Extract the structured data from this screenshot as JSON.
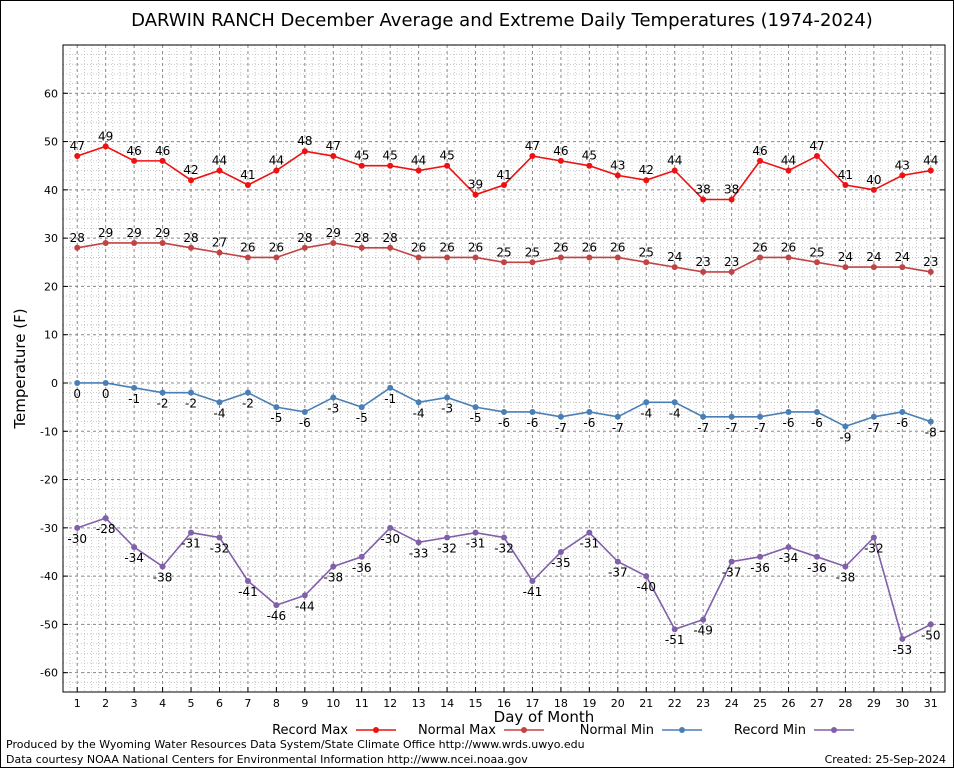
{
  "chart_data": {
    "type": "line",
    "title": "DARWIN RANCH December Average and Extreme Daily Temperatures (1974-2024)",
    "xlabel": "Day of Month",
    "ylabel": "Temperature (F)",
    "ylim": [
      -64,
      70
    ],
    "yticks": [
      -60,
      -50,
      -40,
      -30,
      -20,
      -10,
      0,
      10,
      20,
      30,
      40,
      50,
      60
    ],
    "x": [
      1,
      2,
      3,
      4,
      5,
      6,
      7,
      8,
      9,
      10,
      11,
      12,
      13,
      14,
      15,
      16,
      17,
      18,
      19,
      20,
      21,
      22,
      23,
      24,
      25,
      26,
      27,
      28,
      29,
      30,
      31
    ],
    "grid": true,
    "legend_position": "bottom",
    "series": [
      {
        "name": "Record Max",
        "color": "#ee1111",
        "values": [
          47,
          49,
          46,
          46,
          42,
          44,
          41,
          44,
          48,
          47,
          45,
          45,
          44,
          45,
          39,
          41,
          47,
          46,
          45,
          43,
          42,
          44,
          38,
          38,
          46,
          44,
          47,
          41,
          40,
          43,
          44
        ]
      },
      {
        "name": "Normal Max",
        "color": "#c04444",
        "values": [
          28,
          29,
          29,
          29,
          28,
          27,
          26,
          26,
          28,
          29,
          28,
          28,
          26,
          26,
          26,
          25,
          25,
          26,
          26,
          26,
          25,
          24,
          23,
          23,
          26,
          26,
          25,
          24,
          24,
          24,
          23
        ]
      },
      {
        "name": "Normal Min",
        "color": "#4a7fb5",
        "values": [
          0,
          0,
          -1,
          -2,
          -2,
          -4,
          -2,
          -5,
          -6,
          -3,
          -5,
          -1,
          -4,
          -3,
          -5,
          -6,
          -6,
          -7,
          -6,
          -7,
          -4,
          -4,
          -7,
          -7,
          -7,
          -6,
          -6,
          -9,
          -7,
          -6,
          -8
        ]
      },
      {
        "name": "Record Min",
        "color": "#8060a8",
        "values": [
          -30,
          -28,
          -34,
          -38,
          -31,
          -32,
          -41,
          -46,
          -44,
          -38,
          -36,
          -30,
          -33,
          -32,
          -31,
          -32,
          -41,
          -35,
          -31,
          -37,
          -40,
          -51,
          -49,
          -37,
          -36,
          -34,
          -36,
          -38,
          -32,
          -53,
          -50
        ]
      }
    ]
  },
  "footer": {
    "produced_by": "Produced by the Wyoming Water Resources Data System/State Climate Office http://www.wrds.uwyo.edu",
    "courtesy": "Data courtesy NOAA National Centers for Environmental Information http://www.ncei.noaa.gov",
    "created": "Created:  25-Sep-2024"
  }
}
